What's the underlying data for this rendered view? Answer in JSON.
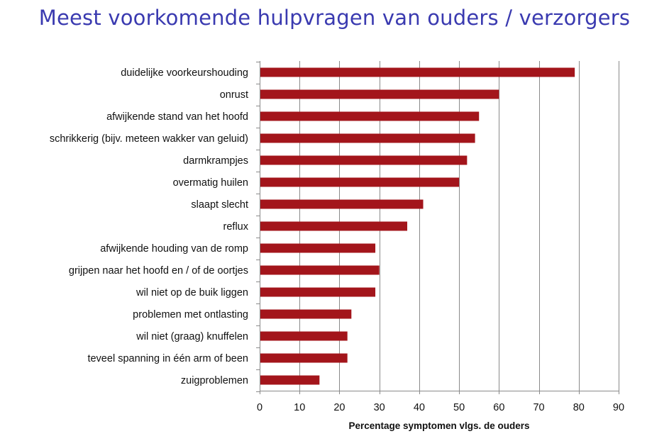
{
  "chart_data": {
    "type": "bar",
    "orientation": "horizontal",
    "title": "Meest voorkomende hulpvragen van ouders / verzorgers",
    "xlabel": "Percentage symptomen vlgs. de ouders",
    "ylabel": "",
    "xlim": [
      0,
      90
    ],
    "xticks": [
      0,
      10,
      20,
      30,
      40,
      50,
      60,
      70,
      80,
      90
    ],
    "grid": true,
    "legend": "none",
    "bar_color": "#a3151b",
    "categories": [
      "duidelijke voorkeurshouding",
      "onrust",
      "afwijkende stand van het hoofd",
      "schrikkerig (bijv. meteen wakker van geluid)",
      "darmkrampjes",
      "overmatig huilen",
      "slaapt slecht",
      "reflux",
      "afwijkende houding van de romp",
      "grijpen naar het hoofd en / of de oortjes",
      "wil niet op de buik liggen",
      "problemen met ontlasting",
      "wil niet (graag) knuffelen",
      "teveel spanning in één arm of been",
      "zuigproblemen"
    ],
    "values": [
      79,
      60,
      55,
      54,
      52,
      50,
      41,
      37,
      29,
      30,
      29,
      23,
      22,
      22,
      15
    ]
  }
}
